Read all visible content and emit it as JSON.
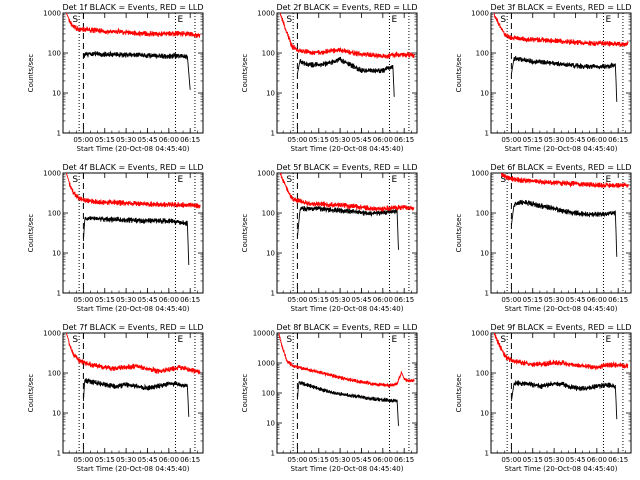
{
  "chart_data": [
    {
      "type": "line",
      "title": "Det 1f BLACK = Events, RED = LLD",
      "xlabel": "Start Time (20-Oct-08 04:45:40)",
      "ylabel": "Counts/sec",
      "yscale": "log",
      "ylim": [
        1,
        1000
      ],
      "yticks": [
        "1",
        "10",
        "100",
        "1000"
      ],
      "xticks": [
        "05:00",
        "05:15",
        "05:30",
        "05:45",
        "06:00",
        "06:15"
      ],
      "xlim": [
        "04:45:40",
        "06:24:00"
      ],
      "markers": {
        "start_label": "S",
        "end_label": "E",
        "dotted": [
          "04:57:00",
          "06:04:40",
          "06:18:20"
        ],
        "dashed": [
          "05:00:00"
        ]
      },
      "series": [
        {
          "color": "#000000",
          "x": [
            "05:00",
            "05:07",
            "05:15",
            "05:22",
            "05:30",
            "05:37",
            "05:45",
            "05:52",
            "06:00",
            "06:07",
            "06:13",
            "06:15"
          ],
          "values": [
            95,
            105,
            100,
            98,
            97,
            95,
            93,
            92,
            90,
            92,
            85,
            12
          ]
        },
        {
          "color": "#ff0000",
          "x": [
            "04:48",
            "04:50",
            "04:53",
            "04:56",
            "05:00",
            "05:07",
            "05:15",
            "05:22",
            "05:30",
            "05:37",
            "05:45",
            "05:52",
            "06:00",
            "06:07",
            "06:15",
            "06:22"
          ],
          "values": [
            1000,
            700,
            480,
            440,
            420,
            400,
            380,
            380,
            360,
            340,
            330,
            320,
            330,
            330,
            320,
            280
          ]
        }
      ]
    },
    {
      "type": "line",
      "title": "Det 2f BLACK = Events, RED = LLD",
      "xlabel": "Start Time (20-Oct-08 04:45:40)",
      "ylabel": "Counts/sec",
      "yscale": "log",
      "ylim": [
        1,
        1000
      ],
      "yticks": [
        "1",
        "10",
        "100",
        "1000"
      ],
      "xticks": [
        "05:00",
        "05:15",
        "05:30",
        "05:45",
        "06:00",
        "06:15"
      ],
      "xlim": [
        "04:45:40",
        "06:24:00"
      ],
      "markers": {
        "start_label": "S",
        "end_label": "E",
        "dotted": [
          "04:57:00",
          "06:04:40",
          "06:18:20"
        ],
        "dashed": [
          "05:00:00"
        ]
      },
      "series": [
        {
          "color": "#000000",
          "x": [
            "05:00",
            "05:02",
            "05:07",
            "05:15",
            "05:22",
            "05:30",
            "05:37",
            "05:45",
            "05:52",
            "06:00",
            "06:07",
            "06:08"
          ],
          "values": [
            30,
            70,
            55,
            55,
            60,
            75,
            55,
            40,
            38,
            40,
            50,
            8
          ]
        },
        {
          "color": "#ff0000",
          "x": [
            "04:48",
            "04:52",
            "04:56",
            "05:00",
            "05:07",
            "05:15",
            "05:22",
            "05:30",
            "05:37",
            "05:45",
            "05:52",
            "06:00",
            "06:07",
            "06:15",
            "06:22"
          ],
          "values": [
            1000,
            400,
            160,
            130,
            115,
            110,
            120,
            130,
            115,
            100,
            95,
            90,
            95,
            100,
            95
          ]
        }
      ]
    },
    {
      "type": "line",
      "title": "Det 3f BLACK = Events, RED = LLD",
      "xlabel": "Start Time (20-Oct-08 04:45:40)",
      "ylabel": "Counts/sec",
      "yscale": "log",
      "ylim": [
        1,
        1000
      ],
      "yticks": [
        "1",
        "10",
        "100",
        "1000"
      ],
      "xticks": [
        "05:00",
        "05:15",
        "05:30",
        "05:45",
        "06:00",
        "06:15"
      ],
      "xlim": [
        "04:45:40",
        "06:24:00"
      ],
      "markers": {
        "start_label": "S",
        "end_label": "E",
        "dotted": [
          "04:57:00",
          "06:04:40",
          "06:18:20"
        ],
        "dashed": [
          "05:00:00"
        ]
      },
      "series": [
        {
          "color": "#000000",
          "x": [
            "05:00",
            "05:02",
            "05:07",
            "05:15",
            "05:22",
            "05:30",
            "05:37",
            "05:45",
            "05:52",
            "06:00",
            "06:07",
            "06:13",
            "06:14"
          ],
          "values": [
            30,
            80,
            75,
            65,
            65,
            60,
            55,
            52,
            50,
            50,
            50,
            55,
            6
          ]
        },
        {
          "color": "#ff0000",
          "x": [
            "04:48",
            "04:52",
            "04:56",
            "05:00",
            "05:07",
            "05:15",
            "05:22",
            "05:30",
            "05:37",
            "05:45",
            "05:52",
            "06:00",
            "06:07",
            "06:15",
            "06:22"
          ],
          "values": [
            1000,
            500,
            300,
            260,
            240,
            230,
            230,
            220,
            210,
            200,
            190,
            190,
            185,
            180,
            180
          ]
        }
      ]
    },
    {
      "type": "line",
      "title": "Det 4f BLACK = Events, RED = LLD",
      "xlabel": "Start Time (20-Oct-08 04:45:40)",
      "ylabel": "Counts/sec",
      "yscale": "log",
      "ylim": [
        1,
        1000
      ],
      "yticks": [
        "1",
        "10",
        "100",
        "1000"
      ],
      "xticks": [
        "05:00",
        "05:15",
        "05:30",
        "05:45",
        "06:00",
        "06:15"
      ],
      "xlim": [
        "04:45:40",
        "06:24:00"
      ],
      "markers": {
        "start_label": "S",
        "end_label": "E",
        "dotted": [
          "04:57:00",
          "06:04:40",
          "06:18:20"
        ],
        "dashed": [
          "05:00:00"
        ]
      },
      "series": [
        {
          "color": "#000000",
          "x": [
            "05:00",
            "05:01",
            "05:07",
            "05:15",
            "05:22",
            "05:30",
            "05:37",
            "05:45",
            "05:52",
            "06:00",
            "06:07",
            "06:13",
            "06:14"
          ],
          "values": [
            20,
            75,
            80,
            75,
            75,
            72,
            70,
            68,
            70,
            68,
            65,
            60,
            5
          ]
        },
        {
          "color": "#ff0000",
          "x": [
            "04:48",
            "04:50",
            "04:53",
            "04:57",
            "05:00",
            "05:07",
            "05:15",
            "05:22",
            "05:30",
            "05:37",
            "05:45",
            "05:52",
            "06:00",
            "06:07",
            "06:15",
            "06:22"
          ],
          "values": [
            1000,
            600,
            350,
            250,
            230,
            210,
            200,
            200,
            190,
            185,
            180,
            180,
            175,
            175,
            170,
            160
          ]
        }
      ]
    },
    {
      "type": "line",
      "title": "Det 5f BLACK = Events, RED = LLD",
      "xlabel": "Start Time (20-Oct-08 04:45:40)",
      "ylabel": "Counts/sec",
      "yscale": "log",
      "ylim": [
        1,
        1000
      ],
      "yticks": [
        "1",
        "10",
        "100",
        "1000"
      ],
      "xticks": [
        "05:00",
        "05:15",
        "05:30",
        "05:45",
        "06:00",
        "06:15"
      ],
      "xlim": [
        "04:45:40",
        "06:24:00"
      ],
      "markers": {
        "start_label": "S",
        "end_label": "E",
        "dotted": [
          "04:57:00",
          "06:04:40",
          "06:18:20"
        ],
        "dashed": [
          "05:00:00"
        ]
      },
      "series": [
        {
          "color": "#000000",
          "x": [
            "05:00",
            "05:02",
            "05:07",
            "05:15",
            "05:22",
            "05:30",
            "05:37",
            "05:45",
            "05:52",
            "06:00",
            "06:07",
            "06:10",
            "06:11"
          ],
          "values": [
            25,
            135,
            140,
            140,
            130,
            125,
            120,
            110,
            105,
            110,
            120,
            115,
            12
          ]
        },
        {
          "color": "#ff0000",
          "x": [
            "04:48",
            "04:52",
            "04:56",
            "05:00",
            "05:07",
            "05:15",
            "05:22",
            "05:30",
            "05:37",
            "05:45",
            "05:52",
            "06:00",
            "06:07",
            "06:15",
            "06:22"
          ],
          "values": [
            1000,
            500,
            250,
            220,
            190,
            180,
            175,
            170,
            160,
            150,
            140,
            135,
            145,
            150,
            140
          ]
        }
      ]
    },
    {
      "type": "line",
      "title": "Det 6f BLACK = Events, RED = LLD",
      "xlabel": "Start Time (20-Oct-08 04:45:40)",
      "ylabel": "Counts/sec",
      "yscale": "log",
      "ylim": [
        1,
        1000
      ],
      "yticks": [
        "1",
        "10",
        "100",
        "1000"
      ],
      "xticks": [
        "05:00",
        "05:15",
        "05:30",
        "05:45",
        "06:00",
        "06:15"
      ],
      "xlim": [
        "04:45:40",
        "06:24:00"
      ],
      "markers": {
        "start_label": "S",
        "end_label": "E",
        "dotted": [
          "04:57:00",
          "06:04:40",
          "06:18:20"
        ],
        "dashed": [
          "05:00:00"
        ]
      },
      "series": [
        {
          "color": "#000000",
          "x": [
            "05:00",
            "05:02",
            "05:07",
            "05:15",
            "05:22",
            "05:30",
            "05:37",
            "05:45",
            "05:52",
            "06:00",
            "06:07",
            "06:13",
            "06:14"
          ],
          "values": [
            50,
            180,
            200,
            185,
            160,
            140,
            120,
            110,
            100,
            100,
            105,
            110,
            8
          ]
        },
        {
          "color": "#ff0000",
          "x": [
            "04:53",
            "04:56",
            "05:00",
            "05:07",
            "05:15",
            "05:22",
            "05:30",
            "05:37",
            "05:45",
            "05:52",
            "06:00",
            "06:07",
            "06:15",
            "06:22"
          ],
          "values": [
            1000,
            850,
            780,
            720,
            680,
            640,
            620,
            600,
            580,
            560,
            540,
            540,
            520,
            530
          ]
        }
      ]
    },
    {
      "type": "line",
      "title": "Det 7f BLACK = Events, RED = LLD",
      "xlabel": "Start Time (20-Oct-08 04:45:40)",
      "ylabel": "Counts/sec",
      "yscale": "log",
      "ylim": [
        1,
        1000
      ],
      "yticks": [
        "1",
        "10",
        "100",
        "1000"
      ],
      "xticks": [
        "05:00",
        "05:15",
        "05:30",
        "05:45",
        "06:00",
        "06:15"
      ],
      "xlim": [
        "04:45:40",
        "06:24:00"
      ],
      "markers": {
        "start_label": "S",
        "end_label": "E",
        "dotted": [
          "04:57:00",
          "06:04:40",
          "06:18:20"
        ],
        "dashed": [
          "05:00:00"
        ]
      },
      "series": [
        {
          "color": "#000000",
          "x": [
            "05:00",
            "05:01",
            "05:07",
            "05:15",
            "05:22",
            "05:30",
            "05:37",
            "05:45",
            "05:52",
            "06:00",
            "06:07",
            "06:13",
            "06:14"
          ],
          "values": [
            20,
            70,
            65,
            55,
            50,
            55,
            50,
            45,
            50,
            60,
            55,
            50,
            8
          ]
        },
        {
          "color": "#ff0000",
          "x": [
            "04:48",
            "04:50",
            "04:53",
            "04:57",
            "05:00",
            "05:07",
            "05:15",
            "05:22",
            "05:30",
            "05:37",
            "05:45",
            "05:52",
            "06:00",
            "06:07",
            "06:15",
            "06:22"
          ],
          "values": [
            1000,
            600,
            320,
            220,
            200,
            170,
            150,
            140,
            150,
            160,
            140,
            120,
            130,
            150,
            130,
            110
          ]
        }
      ]
    },
    {
      "type": "line",
      "title": "Det 8f BLACK = Events, RED = LLD",
      "xlabel": "Start Time (20-Oct-08 04:45:40)",
      "ylabel": "Counts/sec",
      "yscale": "log",
      "ylim": [
        1,
        10000
      ],
      "yticks": [
        "1",
        "10",
        "100",
        "1000",
        "10000"
      ],
      "xticks": [
        "05:00",
        "05:15",
        "05:30",
        "05:45",
        "06:00",
        "06:15"
      ],
      "xlim": [
        "04:45:40",
        "06:24:00"
      ],
      "markers": {
        "start_label": "S",
        "end_label": "E",
        "dotted": [
          "04:57:00",
          "06:04:40",
          "06:18:20"
        ],
        "dashed": [
          "05:00:00"
        ]
      },
      "series": [
        {
          "color": "#000000",
          "x": [
            "05:00",
            "05:01",
            "05:07",
            "05:15",
            "05:22",
            "05:30",
            "05:37",
            "05:45",
            "05:52",
            "06:00",
            "06:07",
            "06:10",
            "06:11"
          ],
          "values": [
            60,
            250,
            200,
            150,
            120,
            100,
            90,
            80,
            70,
            65,
            60,
            60,
            8
          ]
        },
        {
          "color": "#ff0000",
          "x": [
            "04:47",
            "04:50",
            "04:53",
            "04:57",
            "05:00",
            "05:07",
            "05:15",
            "05:22",
            "05:30",
            "05:37",
            "05:45",
            "05:52",
            "06:00",
            "06:07",
            "06:10",
            "06:13",
            "06:15",
            "06:22"
          ],
          "values": [
            10000,
            3000,
            1200,
            900,
            800,
            650,
            550,
            450,
            350,
            300,
            250,
            220,
            200,
            200,
            220,
            500,
            300,
            280
          ]
        }
      ]
    },
    {
      "type": "line",
      "title": "Det 9f BLACK = Events, RED = LLD",
      "xlabel": "Start Time (20-Oct-08 04:45:40)",
      "ylabel": "Counts/sec",
      "yscale": "log",
      "ylim": [
        1,
        1000
      ],
      "yticks": [
        "1",
        "10",
        "100",
        "1000"
      ],
      "xticks": [
        "05:00",
        "05:15",
        "05:30",
        "05:45",
        "06:00",
        "06:15"
      ],
      "xlim": [
        "04:45:40",
        "06:24:00"
      ],
      "markers": {
        "start_label": "S",
        "end_label": "E",
        "dotted": [
          "04:57:00",
          "06:04:40",
          "06:18:20"
        ],
        "dashed": [
          "05:00:00"
        ]
      },
      "series": [
        {
          "color": "#000000",
          "x": [
            "05:00",
            "05:02",
            "05:07",
            "05:15",
            "05:22",
            "05:30",
            "05:37",
            "05:45",
            "05:52",
            "06:00",
            "06:07",
            "06:13",
            "06:14"
          ],
          "values": [
            20,
            60,
            60,
            55,
            50,
            60,
            55,
            45,
            45,
            50,
            55,
            50,
            7
          ]
        },
        {
          "color": "#ff0000",
          "x": [
            "04:48",
            "04:52",
            "04:56",
            "05:00",
            "05:07",
            "05:15",
            "05:22",
            "05:30",
            "05:37",
            "05:45",
            "05:52",
            "06:00",
            "06:07",
            "06:15",
            "06:22"
          ],
          "values": [
            1000,
            500,
            270,
            220,
            200,
            180,
            180,
            200,
            190,
            170,
            160,
            150,
            170,
            170,
            160
          ]
        }
      ]
    }
  ]
}
